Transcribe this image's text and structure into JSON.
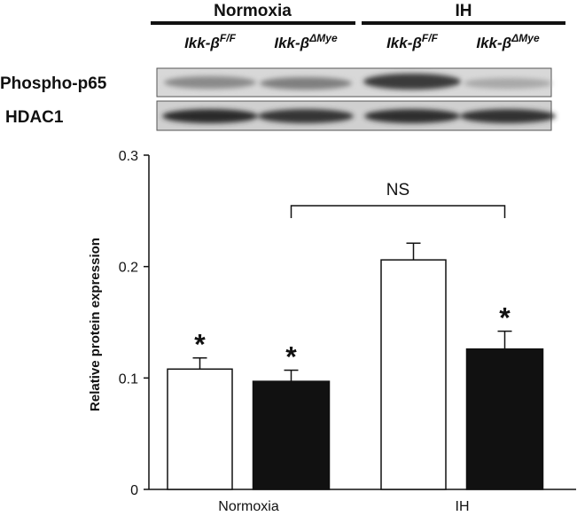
{
  "blot": {
    "groups": [
      "Normoxia",
      "IH"
    ],
    "lanes": [
      {
        "base": "Ikk-β",
        "sup": "F/F"
      },
      {
        "base": "Ikk-β",
        "sup": "ΔMye"
      },
      {
        "base": "Ikk-β",
        "sup": "F/F"
      },
      {
        "base": "Ikk-β",
        "sup": "ΔMye"
      }
    ],
    "rows": [
      "Phospho-p65",
      "HDAC1"
    ]
  },
  "chart_data": {
    "type": "bar",
    "y_label": "Relative protein expression",
    "categories": [
      "Normoxia",
      "IH"
    ],
    "series": [
      {
        "color": "#ffffff",
        "values": [
          0.108,
          0.206
        ],
        "errors": [
          0.01,
          0.015
        ],
        "significance": [
          "*",
          null
        ]
      },
      {
        "color": "#111111",
        "values": [
          0.097,
          0.126
        ],
        "errors": [
          0.01,
          0.016
        ],
        "significance": [
          "*",
          "*"
        ]
      }
    ],
    "bracket_label": "NS",
    "ylim": [
      0,
      0.3
    ],
    "yticks": [
      0,
      0.1,
      0.2,
      0.3
    ]
  }
}
